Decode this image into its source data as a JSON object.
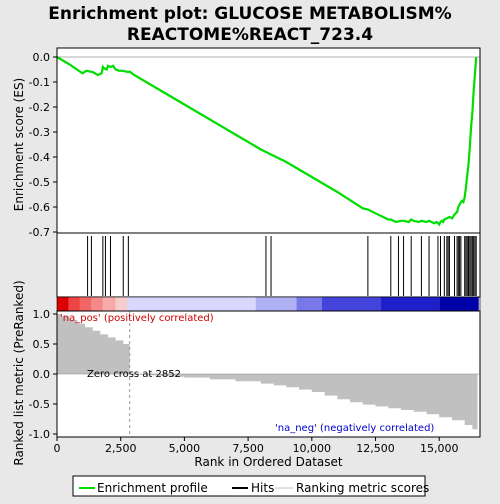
{
  "title": "Enrichment plot: GLUCOSE METABOLISM%\nREACTOME%REACT_723.4",
  "colors": {
    "es_line": "#00dd00",
    "hits": "#000000",
    "ranking": "#c0c0c0",
    "zero_cross_line": "#999999",
    "pos_label": "#cc0000",
    "neg_label": "#0000cc",
    "frame_bg": "#ffffff",
    "page_bg": "#e8e8e8"
  },
  "legend": {
    "items": [
      {
        "label": "Enrichment profile",
        "kind": "line",
        "color": "#00dd00"
      },
      {
        "label": "Hits",
        "kind": "line",
        "color": "#000000"
      },
      {
        "label": "Ranking metric scores",
        "kind": "line",
        "color": "#c0c0c0"
      }
    ]
  },
  "chart_data": [
    {
      "type": "line",
      "name": "enrichment-score-panel",
      "ylabel": "Enrichment score (ES)",
      "xlim": [
        0,
        16600
      ],
      "ylim": [
        -0.7,
        0.0
      ],
      "yticks": [
        "0.0",
        "-0.1",
        "-0.2",
        "-0.3",
        "-0.4",
        "-0.5",
        "-0.6",
        "-0.7"
      ],
      "ytick_values": [
        0.0,
        -0.1,
        -0.2,
        -0.3,
        -0.4,
        -0.5,
        -0.6,
        -0.7
      ],
      "series": [
        {
          "x": [
            0,
            500,
            1000,
            1150,
            1300,
            1400,
            1600,
            1750,
            1800,
            1850,
            1950,
            2000,
            2100,
            2200,
            2300,
            2450,
            2600,
            2700,
            2800,
            2850,
            3000,
            3500,
            4000,
            5000,
            6000,
            7000,
            8000,
            8200,
            8400,
            9000,
            10000,
            11000,
            12000,
            12200,
            12500,
            12800,
            13000,
            13100,
            13300,
            13500,
            13600,
            13800,
            13900,
            14000,
            14200,
            14300,
            14500,
            14600,
            14800,
            14900,
            15000,
            15050,
            15100,
            15150,
            15200,
            15300,
            15400,
            15500,
            15600,
            15700,
            15750,
            15800,
            15850,
            15900,
            15950,
            16000,
            16050,
            16100,
            16150,
            16200,
            16250,
            16300,
            16350,
            16400,
            16450
          ],
          "y": [
            0.0,
            -0.03,
            -0.065,
            -0.055,
            -0.058,
            -0.06,
            -0.072,
            -0.065,
            -0.04,
            -0.045,
            -0.05,
            -0.035,
            -0.04,
            -0.035,
            -0.05,
            -0.055,
            -0.055,
            -0.058,
            -0.06,
            -0.058,
            -0.07,
            -0.1,
            -0.13,
            -0.19,
            -0.25,
            -0.31,
            -0.37,
            -0.38,
            -0.39,
            -0.42,
            -0.48,
            -0.54,
            -0.605,
            -0.61,
            -0.625,
            -0.64,
            -0.65,
            -0.65,
            -0.66,
            -0.655,
            -0.655,
            -0.66,
            -0.65,
            -0.655,
            -0.66,
            -0.655,
            -0.66,
            -0.655,
            -0.665,
            -0.66,
            -0.67,
            -0.66,
            -0.655,
            -0.66,
            -0.65,
            -0.645,
            -0.64,
            -0.645,
            -0.63,
            -0.62,
            -0.6,
            -0.59,
            -0.58,
            -0.575,
            -0.58,
            -0.56,
            -0.52,
            -0.47,
            -0.43,
            -0.36,
            -0.28,
            -0.22,
            -0.14,
            -0.07,
            0.0
          ]
        }
      ]
    },
    {
      "type": "scatter",
      "name": "hits-panel",
      "hits_x": [
        1200,
        1350,
        1800,
        1900,
        2100,
        2600,
        2800,
        8200,
        8400,
        12200,
        13100,
        13400,
        13600,
        13900,
        14300,
        14600,
        14950,
        15050,
        15200,
        15300,
        15350,
        15400,
        15600,
        15700,
        15750,
        15800,
        15850,
        16000,
        16050,
        16100,
        16150,
        16200,
        16250,
        16300,
        16350,
        16400,
        16450
      ]
    },
    {
      "type": "heatmap",
      "name": "ranked-list-color-bar",
      "x": [
        0,
        450,
        900,
        1350,
        1800,
        2300,
        2750,
        7800,
        9400,
        10400,
        12700,
        15000,
        16550
      ],
      "colors": [
        "#dd0000",
        "#ee4444",
        "#f26666",
        "#f58888",
        "#f7aaaa",
        "#f9cccc",
        "#d8d8ff",
        "#b0b0f4",
        "#7878e8",
        "#4444dd",
        "#1f1fcc",
        "#0000a8"
      ]
    },
    {
      "type": "area",
      "name": "ranking-metric-panel",
      "xlabel": "Rank in Ordered Dataset",
      "ylabel": "Ranked list metric (PreRanked)",
      "xlim": [
        0,
        16600
      ],
      "ylim": [
        -1.05,
        1.05
      ],
      "xticks": [
        "0",
        "2,500",
        "5,000",
        "7,500",
        "10,000",
        "12,500",
        "15,000"
      ],
      "xtick_values": [
        0,
        2500,
        5000,
        7500,
        10000,
        12500,
        15000
      ],
      "yticks": [
        "1.0",
        "0.5",
        "0.0",
        "-0.5",
        "-1.0"
      ],
      "ytick_values": [
        1.0,
        0.5,
        0.0,
        -0.5,
        -1.0
      ],
      "x": [
        0,
        200,
        500,
        800,
        1100,
        1400,
        1700,
        2000,
        2300,
        2600,
        2852,
        3000,
        3500,
        4000,
        4500,
        5000,
        6000,
        7000,
        8000,
        8500,
        9000,
        9500,
        10000,
        10500,
        11000,
        11500,
        12000,
        12500,
        13000,
        13500,
        14000,
        14500,
        15000,
        15500,
        16000,
        16300,
        16500
      ],
      "values": [
        1.0,
        0.96,
        0.9,
        0.84,
        0.78,
        0.72,
        0.66,
        0.61,
        0.56,
        0.5,
        0.0,
        -0.01,
        -0.02,
        -0.03,
        -0.045,
        -0.06,
        -0.09,
        -0.12,
        -0.16,
        -0.19,
        -0.22,
        -0.26,
        -0.3,
        -0.36,
        -0.42,
        -0.47,
        -0.51,
        -0.54,
        -0.57,
        -0.6,
        -0.63,
        -0.67,
        -0.72,
        -0.77,
        -0.85,
        -0.92,
        -1.0
      ],
      "zero_cross_x": 2852,
      "annotations": {
        "positive": "'na_pos' (positively correlated)",
        "negative": "'na_neg' (negatively correlated)",
        "zero_cross": "Zero cross at 2852"
      }
    }
  ]
}
